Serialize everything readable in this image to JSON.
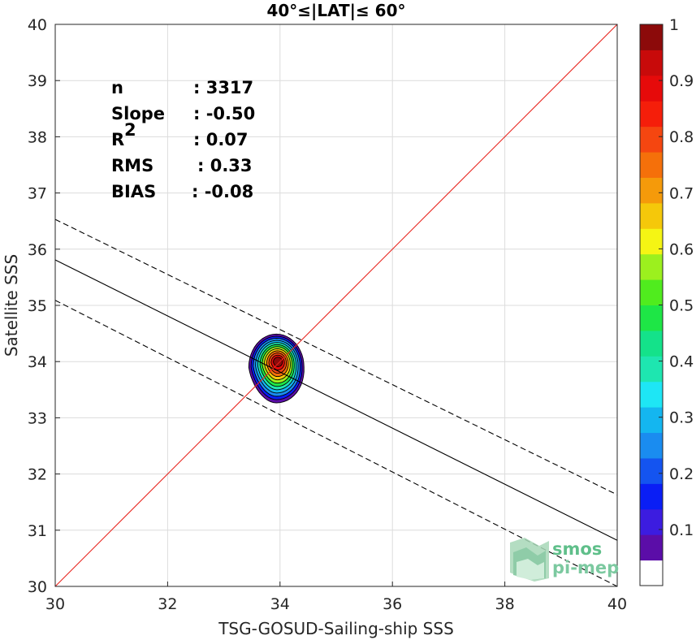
{
  "chart_data": {
    "type": "scatter",
    "title": "40°≤|LAT|≤ 60°",
    "xlabel": "TSG-GOSUD-Sailing-ship SSS",
    "ylabel": "Satellite SSS",
    "xlim": [
      30,
      40
    ],
    "ylim": [
      30,
      40
    ],
    "xticks": [
      "30",
      "32",
      "34",
      "36",
      "38",
      "40"
    ],
    "yticks": [
      "30",
      "31",
      "32",
      "33",
      "34",
      "35",
      "36",
      "37",
      "38",
      "39",
      "40"
    ],
    "grid": true,
    "stats": [
      {
        "label": "n",
        "value": ": 3317"
      },
      {
        "label": "Slope",
        "value": ": -0.50"
      },
      {
        "label": "R",
        "sup": "2",
        "value": ": 0.07"
      },
      {
        "label": "RMS",
        "value": ": 0.33"
      },
      {
        "label": "BIAS",
        "value": ": -0.08"
      }
    ],
    "identity_line": {
      "x": [
        30,
        40
      ],
      "y": [
        30,
        40
      ],
      "color": "#e8231c"
    },
    "regression_line": {
      "x": [
        30,
        40
      ],
      "y": [
        35.81,
        30.82
      ]
    },
    "upper_bound": {
      "x": [
        30,
        40
      ],
      "y": [
        36.53,
        31.63
      ]
    },
    "lower_bound": {
      "x": [
        30,
        40
      ],
      "y": [
        35.09,
        30.0
      ]
    },
    "density_center": {
      "x": 33.95,
      "y": 34.0
    },
    "colorbar": {
      "ticks": [
        "0.1",
        "0.2",
        "0.3",
        "0.4",
        "0.5",
        "0.6",
        "0.7",
        "0.8",
        "0.9",
        "1"
      ],
      "colors": [
        "#ffffff",
        "#5b0da8",
        "#3c1ce0",
        "#0a1ef5",
        "#1454f0",
        "#1a8cf0",
        "#14b6f0",
        "#1ee6f5",
        "#1ee6b0",
        "#14e28a",
        "#1ee646",
        "#50ec1e",
        "#9cf01e",
        "#f5f514",
        "#f5c80a",
        "#f59a0a",
        "#f5700a",
        "#f54610",
        "#f51e0a",
        "#e60a0a",
        "#c80a0a",
        "#8c0a0a"
      ]
    }
  },
  "logo": {
    "line1": "smos",
    "line2": "pi-mep"
  }
}
